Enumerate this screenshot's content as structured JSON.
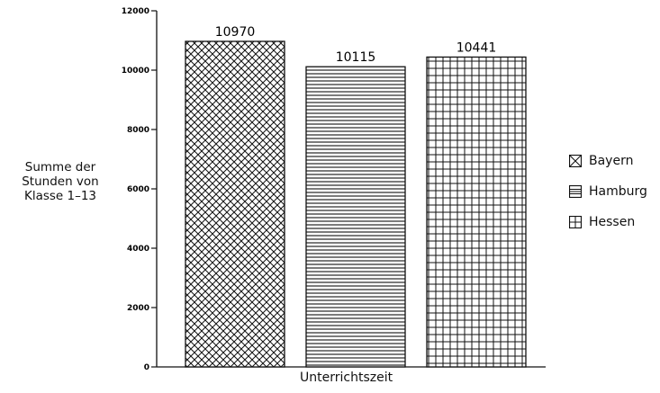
{
  "chart_data": {
    "type": "bar",
    "categories": [
      "Bayern",
      "Hamburg",
      "Hessen"
    ],
    "values": [
      10970,
      10115,
      10441
    ],
    "data_labels": [
      "10970",
      "10115",
      "10441"
    ],
    "ylabel_lines": [
      "Summe der",
      "Stunden von",
      "Klasse 1–13"
    ],
    "xlabel": "Unterrichtszeit",
    "ylim": [
      0,
      12000
    ],
    "yticks": [
      0,
      2000,
      4000,
      6000,
      8000,
      10000,
      12000
    ],
    "ytick_labels": [
      "0",
      "2000",
      "4000",
      "6000",
      "8000",
      "10000",
      "12000"
    ],
    "legend_placement": "right",
    "legend": [
      {
        "label": "Bayern",
        "pattern": "crosshatch"
      },
      {
        "label": "Hamburg",
        "pattern": "horizontal-lines"
      },
      {
        "label": "Hessen",
        "pattern": "grid"
      }
    ],
    "grid": false
  }
}
